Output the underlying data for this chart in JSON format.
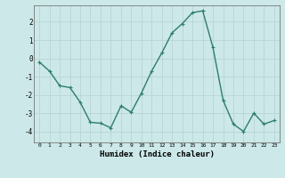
{
  "x": [
    0,
    1,
    2,
    3,
    4,
    5,
    6,
    7,
    8,
    9,
    10,
    11,
    12,
    13,
    14,
    15,
    16,
    17,
    18,
    19,
    20,
    21,
    22,
    23
  ],
  "y": [
    -0.2,
    -0.7,
    -1.5,
    -1.6,
    -2.4,
    -3.5,
    -3.55,
    -3.8,
    -2.6,
    -2.95,
    -1.9,
    -0.7,
    0.3,
    1.4,
    1.9,
    2.5,
    2.6,
    0.6,
    -2.3,
    -3.6,
    -4.0,
    -3.0,
    -3.6,
    -3.4
  ],
  "line_color": "#2d7d6e",
  "marker": "+",
  "marker_size": 3,
  "linewidth": 1.0,
  "xlabel": "Humidex (Indice chaleur)",
  "bg_color": "#cce8e8",
  "grid_color": "#b8d4d4",
  "yticks": [
    -4,
    -3,
    -2,
    -1,
    0,
    1,
    2
  ],
  "xtick_labels": [
    "0",
    "1",
    "2",
    "3",
    "4",
    "5",
    "6",
    "7",
    "8",
    "9",
    "10",
    "11",
    "12",
    "13",
    "14",
    "15",
    "16",
    "17",
    "18",
    "19",
    "20",
    "21",
    "22",
    "23"
  ],
  "ylim": [
    -4.6,
    2.9
  ],
  "xlim": [
    -0.5,
    23.5
  ]
}
